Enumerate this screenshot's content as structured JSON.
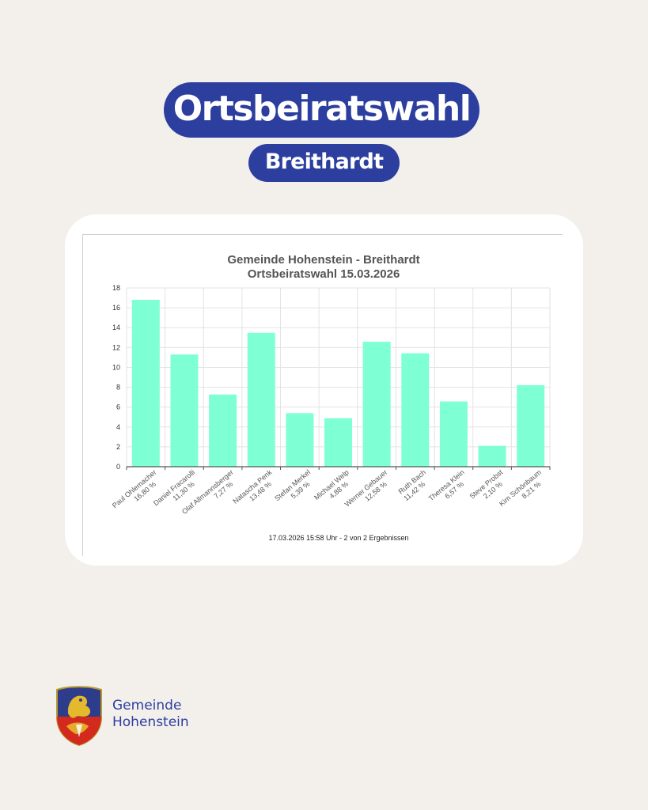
{
  "header": {
    "title": "Ortsbeiratswahl",
    "subtitle": "Breithardt"
  },
  "colors": {
    "brand": "#2c3e9e",
    "bar": "#7fffd4",
    "background": "#f3f0ec"
  },
  "chart_data": {
    "type": "bar",
    "title": "Gemeinde Hohenstein - Breithardt",
    "subtitle": "Ortsbeiratswahl 15.03.2026",
    "categories": [
      "Paul Ohlemacher",
      "Daniel Fracarolli",
      "Olaf Allmannsberger",
      "Natascha Penk",
      "Stefan Merkel",
      "Michael Welp",
      "Werner Gebauer",
      "Ruth Bach",
      "Theresa Klein",
      "Steve Probst",
      "Kim Schönbaum"
    ],
    "value_labels": [
      "16,80 %",
      "11,30 %",
      "7,27 %",
      "13,48 %",
      "5,39 %",
      "4,88 %",
      "12,58 %",
      "11,42 %",
      "6,57 %",
      "2,10 %",
      "8,21 %"
    ],
    "values": [
      16.8,
      11.3,
      7.27,
      13.48,
      5.39,
      4.88,
      12.58,
      11.42,
      6.57,
      2.1,
      8.21
    ],
    "ylim": [
      0,
      18
    ],
    "yticks": [
      "0",
      "2",
      "4",
      "6",
      "8",
      "10",
      "12",
      "14",
      "16",
      "18"
    ],
    "grid": true,
    "legend": "none",
    "footnote": "17.03.2026 15:58 Uhr - 2 von 2 Ergebnissen"
  },
  "footer": {
    "org_line1": "Gemeinde",
    "org_line2": "Hohenstein",
    "logo_icon": "coat-of-arms-icon"
  }
}
